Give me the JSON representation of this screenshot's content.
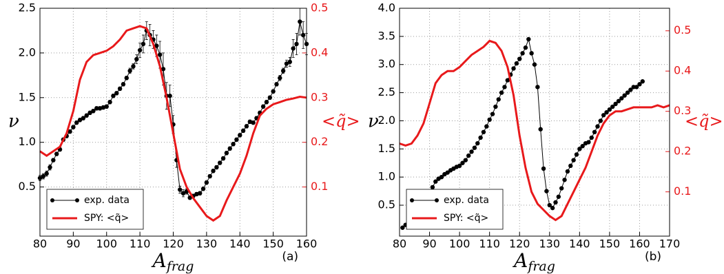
{
  "chart_data": [
    {
      "type": "line",
      "panel_label": "(a)",
      "ylabel": "ν",
      "y2label": "<q̃>",
      "xlabel": {
        "main": "A",
        "sub": "frag"
      },
      "xlim": [
        80,
        160
      ],
      "xticks": [
        80,
        90,
        100,
        110,
        120,
        130,
        140,
        150,
        160
      ],
      "ylim": [
        -0.05,
        2.5
      ],
      "yticks": [
        0.5,
        {
          "value": 1,
          "label": "1.0"
        },
        1.5,
        {
          "value": 2,
          "label": "2.0"
        },
        2.5
      ],
      "y2lim": [
        -0.01,
        0.5
      ],
      "y2ticks": [
        0.1,
        0.2,
        0.3,
        0.4,
        0.5
      ],
      "grid": true,
      "legend": "lower left",
      "series": [
        {
          "name": "exp. data",
          "color": "#000000",
          "axis": "y",
          "markers": true,
          "x": [
            80,
            81,
            82,
            83,
            84,
            85,
            86,
            87,
            88,
            89,
            90,
            91,
            92,
            93,
            94,
            95,
            96,
            97,
            98,
            99,
            100,
            101,
            102,
            103,
            104,
            105,
            106,
            107,
            108,
            109,
            110,
            111,
            112,
            113,
            114,
            115,
            116,
            117,
            118,
            119,
            120,
            121,
            122,
            123,
            124,
            125,
            126,
            127,
            128,
            129,
            130,
            131,
            132,
            133,
            134,
            135,
            136,
            137,
            138,
            139,
            140,
            141,
            142,
            143,
            144,
            145,
            146,
            147,
            148,
            149,
            150,
            151,
            152,
            153,
            154,
            155,
            156,
            157,
            158,
            159,
            160
          ],
          "values": [
            0.6,
            0.62,
            0.65,
            0.72,
            0.8,
            0.87,
            0.92,
            1.03,
            1.07,
            1.12,
            1.17,
            1.22,
            1.25,
            1.27,
            1.3,
            1.33,
            1.35,
            1.38,
            1.38,
            1.39,
            1.4,
            1.45,
            1.52,
            1.55,
            1.6,
            1.65,
            1.72,
            1.8,
            1.85,
            1.93,
            2.03,
            2.1,
            2.25,
            2.2,
            2.15,
            2.08,
            1.98,
            1.82,
            1.52,
            1.52,
            1.2,
            0.8,
            0.47,
            0.43,
            0.45,
            0.38,
            0.4,
            0.42,
            0.43,
            0.48,
            0.55,
            0.62,
            0.68,
            0.72,
            0.77,
            0.82,
            0.88,
            0.93,
            0.98,
            1.03,
            1.08,
            1.13,
            1.18,
            1.23,
            1.22,
            1.27,
            1.33,
            1.4,
            1.45,
            1.5,
            1.57,
            1.65,
            1.72,
            1.8,
            1.88,
            1.9,
            2.05,
            2.1,
            2.35,
            2.2,
            2.1
          ],
          "errors": [
            0.03,
            0.03,
            0.03,
            0.03,
            0.02,
            0.02,
            0.02,
            0.02,
            0.02,
            0.02,
            0.02,
            0.02,
            0.02,
            0.02,
            0.02,
            0.02,
            0.02,
            0.02,
            0.02,
            0.02,
            0.02,
            0.02,
            0.02,
            0.02,
            0.02,
            0.02,
            0.02,
            0.03,
            0.03,
            0.05,
            0.08,
            0.1,
            0.1,
            0.12,
            0.1,
            0.12,
            0.15,
            0.18,
            0.15,
            0.12,
            0.1,
            0.08,
            0.04,
            0.04,
            0.03,
            0.02,
            0.02,
            0.02,
            0.02,
            0.02,
            0.02,
            0.02,
            0.02,
            0.02,
            0.02,
            0.02,
            0.02,
            0.02,
            0.02,
            0.02,
            0.02,
            0.02,
            0.02,
            0.02,
            0.02,
            0.02,
            0.02,
            0.02,
            0.02,
            0.02,
            0.02,
            0.02,
            0.03,
            0.03,
            0.04,
            0.05,
            0.1,
            0.12,
            0.15,
            0.15,
            0.12
          ]
        },
        {
          "name": "SPY: <q̃>",
          "color": "#e8191b",
          "axis": "y2",
          "markers": false,
          "x": [
            80,
            82,
            84,
            86,
            88,
            90,
            92,
            94,
            96,
            98,
            100,
            102,
            104,
            106,
            108,
            110,
            112,
            114,
            116,
            118,
            120,
            122,
            124,
            126,
            128,
            130,
            132,
            134,
            136,
            138,
            140,
            142,
            144,
            146,
            148,
            150,
            152,
            154,
            156,
            158,
            160
          ],
          "values": [
            0.18,
            0.17,
            0.18,
            0.19,
            0.22,
            0.27,
            0.34,
            0.38,
            0.395,
            0.4,
            0.405,
            0.415,
            0.43,
            0.45,
            0.455,
            0.46,
            0.455,
            0.42,
            0.37,
            0.3,
            0.22,
            0.14,
            0.1,
            0.075,
            0.055,
            0.035,
            0.025,
            0.035,
            0.07,
            0.1,
            0.13,
            0.17,
            0.22,
            0.26,
            0.275,
            0.285,
            0.29,
            0.295,
            0.298,
            0.302,
            0.3
          ]
        }
      ]
    },
    {
      "type": "line",
      "panel_label": "(b)",
      "ylabel": "ν",
      "y2label": "<q̃>",
      "xlabel": {
        "main": "A",
        "sub": "frag"
      },
      "xlim": [
        80,
        170
      ],
      "xticks": [
        80,
        90,
        100,
        110,
        120,
        130,
        140,
        150,
        160,
        170
      ],
      "ylim": [
        -0.05,
        4.0
      ],
      "yticks": [
        0.5,
        {
          "value": 1,
          "label": "1.0"
        },
        1.5,
        {
          "value": 2,
          "label": "2.0"
        },
        2.5,
        {
          "value": 3,
          "label": "3.0"
        },
        3.5,
        {
          "value": 4,
          "label": "4.0"
        }
      ],
      "y2lim": [
        -0.01,
        0.556
      ],
      "y2ticks": [
        0.1,
        0.2,
        0.3,
        0.4,
        0.5
      ],
      "grid": true,
      "legend": "lower left",
      "series": [
        {
          "name": "exp. data",
          "color": "#000000",
          "axis": "y",
          "markers": true,
          "x": [
            81,
            82,
            83,
            84,
            85,
            86,
            87,
            88,
            89,
            90,
            91,
            92,
            93,
            94,
            95,
            96,
            97,
            98,
            99,
            100,
            101,
            102,
            103,
            104,
            105,
            106,
            107,
            108,
            109,
            110,
            111,
            112,
            113,
            114,
            115,
            116,
            117,
            118,
            119,
            120,
            121,
            122,
            123,
            124,
            125,
            126,
            127,
            128,
            129,
            130,
            131,
            132,
            133,
            134,
            135,
            136,
            137,
            138,
            139,
            140,
            141,
            142,
            143,
            144,
            145,
            146,
            147,
            148,
            149,
            150,
            151,
            152,
            153,
            154,
            155,
            156,
            157,
            158,
            159,
            160,
            161
          ],
          "values": [
            0.1,
            0.15,
            0.2,
            0.28,
            0.27,
            0.48,
            0.45,
            0.5,
            0.6,
            0.72,
            0.82,
            0.92,
            0.97,
            1.0,
            1.05,
            1.08,
            1.12,
            1.15,
            1.18,
            1.2,
            1.25,
            1.3,
            1.38,
            1.45,
            1.52,
            1.6,
            1.7,
            1.8,
            1.9,
            2.02,
            2.12,
            2.25,
            2.38,
            2.5,
            2.6,
            2.72,
            2.82,
            2.93,
            3.02,
            3.1,
            3.2,
            3.3,
            3.45,
            3.2,
            3.0,
            2.6,
            1.85,
            1.15,
            0.75,
            0.5,
            0.45,
            0.55,
            0.65,
            0.8,
            0.95,
            1.1,
            1.2,
            1.3,
            1.4,
            1.5,
            1.55,
            1.6,
            1.62,
            1.7,
            1.8,
            1.9,
            2.0,
            2.1,
            2.15,
            2.2,
            2.25,
            2.3,
            2.35,
            2.4,
            2.45,
            2.5,
            2.55,
            2.6,
            2.6,
            2.65,
            2.7
          ]
        },
        {
          "name": "SPY: <q̃>",
          "color": "#e8191b",
          "axis": "y2",
          "markers": false,
          "x": [
            80,
            82,
            84,
            86,
            88,
            90,
            92,
            94,
            96,
            98,
            100,
            102,
            104,
            106,
            108,
            110,
            112,
            114,
            116,
            118,
            120,
            122,
            124,
            126,
            128,
            130,
            132,
            134,
            136,
            138,
            140,
            142,
            144,
            146,
            148,
            150,
            152,
            154,
            156,
            158,
            160,
            162,
            164,
            166,
            168,
            170
          ],
          "values": [
            0.22,
            0.215,
            0.22,
            0.24,
            0.27,
            0.32,
            0.37,
            0.39,
            0.4,
            0.4,
            0.41,
            0.425,
            0.44,
            0.45,
            0.46,
            0.475,
            0.47,
            0.45,
            0.41,
            0.34,
            0.24,
            0.16,
            0.1,
            0.07,
            0.055,
            0.04,
            0.03,
            0.04,
            0.07,
            0.1,
            0.13,
            0.16,
            0.2,
            0.24,
            0.27,
            0.29,
            0.3,
            0.3,
            0.305,
            0.31,
            0.31,
            0.31,
            0.31,
            0.315,
            0.31,
            0.315
          ]
        }
      ]
    }
  ]
}
